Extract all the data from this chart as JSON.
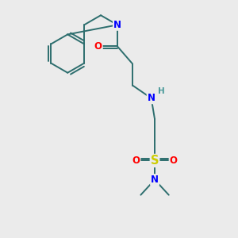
{
  "background_color": "#ebebeb",
  "atom_colors": {
    "N": "#0000ff",
    "O": "#ff0000",
    "S": "#cccc00",
    "C": "#2d6e6e",
    "H": "#4a9a9a"
  },
  "bond_color": "#2d6e6e",
  "bond_width": 1.4,
  "font_size_atom": 8.5,
  "fig_width": 3.0,
  "fig_height": 3.0,
  "dpi": 100,
  "xlim": [
    0,
    10
  ],
  "ylim": [
    0,
    10
  ]
}
